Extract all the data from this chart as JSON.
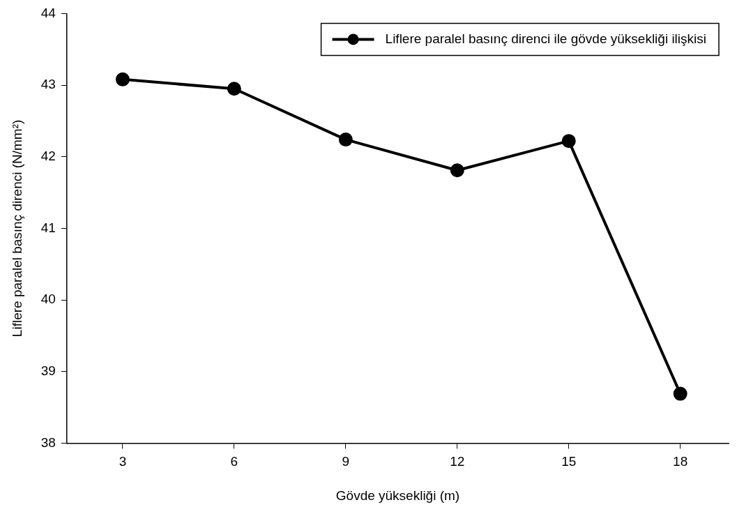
{
  "chart_data": {
    "type": "line",
    "xlabel": "Gövde yüksekliği (m)",
    "ylabel": "Liflere paralel basınç direnci (N/mm²)",
    "x": [
      3,
      6,
      9,
      12,
      15,
      18
    ],
    "series": [
      {
        "name": "Liflere paralel basınç direnci ile gövde yüksekliği ilişkisi",
        "color": "#000000",
        "values": [
          43.08,
          42.95,
          42.24,
          41.81,
          42.22,
          38.69
        ]
      }
    ],
    "xlim": [
      1.5,
      19.3
    ],
    "xticks": [
      3,
      6,
      9,
      12,
      15,
      18
    ],
    "ylim": [
      38,
      44
    ],
    "yticks": [
      38,
      39,
      40,
      41,
      42,
      43,
      44
    ],
    "grid": false,
    "legend": "top right",
    "marker": "circle",
    "line_style": "solid"
  }
}
